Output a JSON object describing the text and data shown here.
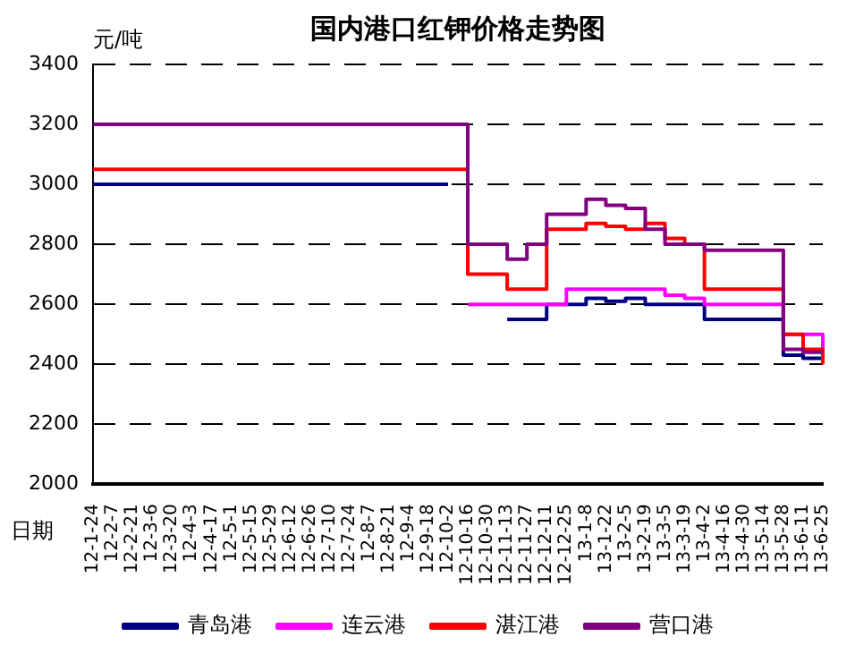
{
  "chart_data": {
    "type": "step",
    "title": "国内港口红钾价格走势图",
    "xlabel": "日期",
    "ylabel": "元/吨",
    "categories": [
      "12-1-24",
      "12-2-7",
      "12-2-21",
      "12-3-6",
      "12-3-20",
      "12-4-3",
      "12-4-17",
      "12-5-1",
      "12-5-15",
      "12-5-29",
      "12-6-12",
      "12-6-26",
      "12-7-10",
      "12-7-24",
      "12-8-7",
      "12-8-21",
      "12-9-4",
      "12-9-18",
      "12-10-2",
      "12-10-16",
      "12-10-30",
      "12-11-13",
      "12-11-27",
      "12-12-11",
      "12-12-25",
      "13-1-8",
      "13-1-22",
      "13-2-5",
      "13-2-19",
      "13-3-5",
      "13-3-19",
      "13-4-2",
      "13-4-16",
      "13-4-30",
      "13-5-14",
      "13-5-28",
      "13-6-11",
      "13-6-25"
    ],
    "series": [
      {
        "name": "青岛港",
        "color": "#000080",
        "values": [
          3000,
          3000,
          3000,
          3000,
          3000,
          3000,
          3000,
          3000,
          3000,
          3000,
          3000,
          3000,
          3000,
          3000,
          3000,
          3000,
          3000,
          3000,
          3000,
          null,
          null,
          2550,
          2550,
          2600,
          2600,
          2620,
          2610,
          2620,
          2600,
          2600,
          2600,
          2550,
          2550,
          2550,
          2550,
          2430,
          2420,
          2420
        ]
      },
      {
        "name": "连云港",
        "color": "#ff00ff",
        "values": [
          null,
          null,
          null,
          null,
          null,
          null,
          null,
          null,
          null,
          null,
          null,
          null,
          null,
          null,
          null,
          null,
          null,
          null,
          null,
          2600,
          2600,
          2600,
          2600,
          2600,
          2650,
          2650,
          2650,
          2650,
          2650,
          2630,
          2620,
          2600,
          2600,
          2600,
          2600,
          2500,
          2500,
          2450
        ]
      },
      {
        "name": "湛江港",
        "color": "#ff0000",
        "values": [
          3050,
          3050,
          3050,
          3050,
          3050,
          3050,
          3050,
          3050,
          3050,
          3050,
          3050,
          3050,
          3050,
          3050,
          3050,
          3050,
          3050,
          3050,
          3050,
          2700,
          2700,
          2650,
          2650,
          2850,
          2850,
          2870,
          2860,
          2850,
          2870,
          2820,
          2800,
          2650,
          2650,
          2650,
          2650,
          2500,
          2450,
          2400
        ]
      },
      {
        "name": "营口港",
        "color": "#800080",
        "values": [
          3200,
          3200,
          3200,
          3200,
          3200,
          3200,
          3200,
          3200,
          3200,
          3200,
          3200,
          3200,
          3200,
          3200,
          3200,
          3200,
          3200,
          3200,
          3200,
          2800,
          2800,
          2750,
          2800,
          2900,
          2900,
          2950,
          2930,
          2920,
          2850,
          2800,
          2800,
          2780,
          2780,
          2780,
          2780,
          2450,
          2440,
          2440
        ]
      }
    ],
    "ylim": [
      2000,
      3400
    ],
    "yticks": [
      2000,
      2200,
      2400,
      2600,
      2800,
      3000,
      3200,
      3400
    ],
    "grid": "y",
    "legend": "bottom",
    "marker": "none",
    "line_style": "solid"
  }
}
